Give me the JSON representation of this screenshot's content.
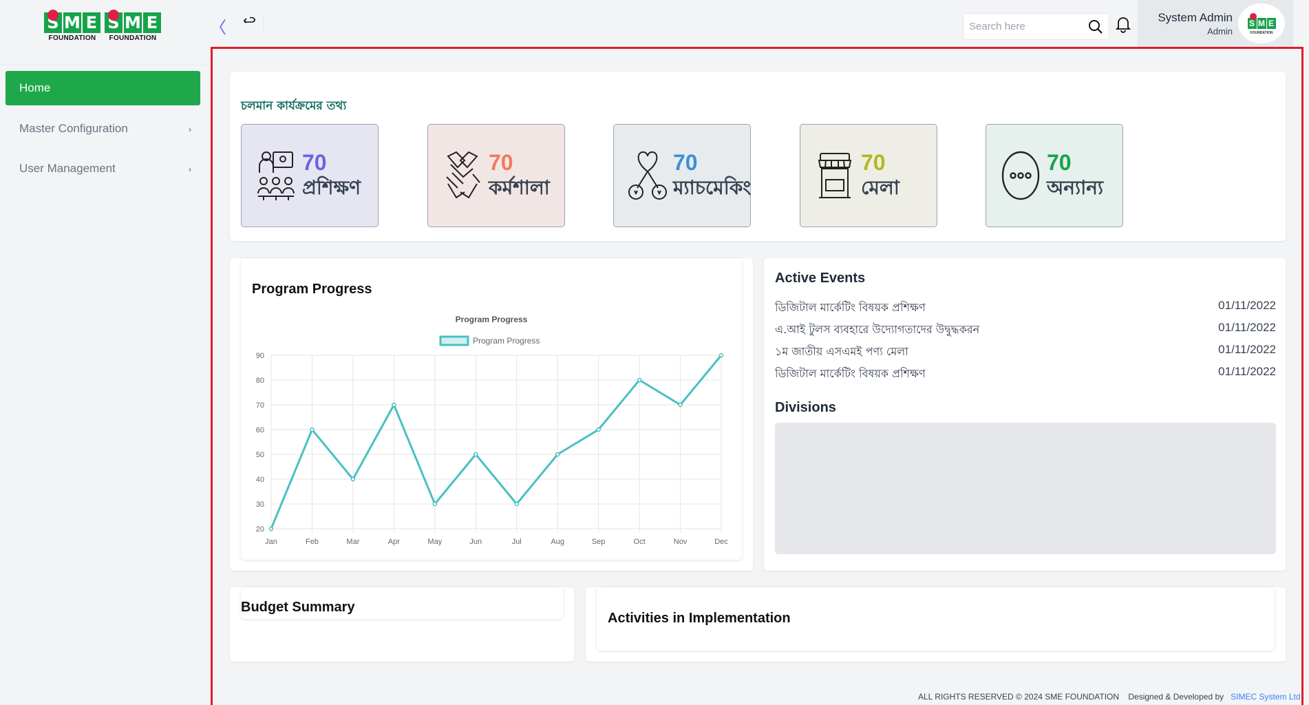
{
  "brand": {
    "logo_letters": [
      "S",
      "M",
      "E"
    ],
    "logo_caption": "FOUNDATION"
  },
  "sidebar": {
    "items": [
      {
        "label": "Home",
        "active": true
      },
      {
        "label": "Master Configuration",
        "has_children": true
      },
      {
        "label": "User Management",
        "has_children": true
      }
    ]
  },
  "topbar": {
    "search_placeholder": "Search here",
    "user_name": "System Admin",
    "user_role": "Admin"
  },
  "running_programs": {
    "title": "চলমান কার্যক্রমের তথ্য",
    "cards": [
      {
        "count": "70",
        "label": "প্রশিক্ষণ",
        "icon": "training-icon",
        "bg": "#e6e6f2",
        "color": "#6c63e0"
      },
      {
        "count": "70",
        "label": "কর্মশালা",
        "icon": "handshake-icon",
        "bg": "#f2e6e4",
        "color": "#ee7b61"
      },
      {
        "count": "70",
        "label": "ম্যাচমেকিং",
        "icon": "matchmaking-icon",
        "bg": "#e8ebee",
        "color": "#3b8fd6"
      },
      {
        "count": "70",
        "label": "মেলা",
        "icon": "fair-stall-icon",
        "bg": "#eeeee6",
        "color": "#b2b81f"
      },
      {
        "count": "70",
        "label": "অন্যান্য",
        "icon": "more-icon",
        "bg": "#e6f0ec",
        "color": "#16a34a"
      }
    ]
  },
  "program_progress": {
    "title": "Program Progress"
  },
  "chart_data": {
    "type": "line",
    "title": "Program Progress",
    "categories": [
      "Jan",
      "Feb",
      "Mar",
      "Apr",
      "May",
      "Jun",
      "Jul",
      "Aug",
      "Sep",
      "Oct",
      "Nov",
      "Dec"
    ],
    "series": [
      {
        "name": "Program Progress",
        "values": [
          20,
          60,
          40,
          70,
          30,
          50,
          30,
          50,
          60,
          80,
          70,
          90
        ],
        "color": "#4bc0c0"
      }
    ],
    "yticks": [
      20,
      30,
      40,
      50,
      60,
      70,
      80,
      90
    ],
    "ylim": [
      20,
      90
    ],
    "grid": true,
    "legend": "top"
  },
  "active_events": {
    "title": "Active Events",
    "items": [
      {
        "name": "ডিজিটাল মার্কেটিং বিষয়ক প্রশিক্ষণ",
        "date": "01/11/2022"
      },
      {
        "name": "এ.আই টুলস ব্যবহারে উদ্যোগতাদের উদ্বুদ্ধকরন",
        "date": "01/11/2022"
      },
      {
        "name": "১ম জাতীয় এসএমই পণ্য মেলা",
        "date": "01/11/2022"
      },
      {
        "name": "ডিজিটাল মার্কেটিং বিষয়ক প্রশিক্ষণ",
        "date": "01/11/2022"
      }
    ]
  },
  "divisions": {
    "title": "Divisions"
  },
  "budget_summary": {
    "title": "Budget Summary"
  },
  "activities": {
    "title": "Activities in Implementation"
  },
  "footer": {
    "rights": "ALL RIGHTS RESERVED © 2024 SME FOUNDATION",
    "designed_by": "Designed & Developed by",
    "company": "SIMEC System Ltd"
  }
}
